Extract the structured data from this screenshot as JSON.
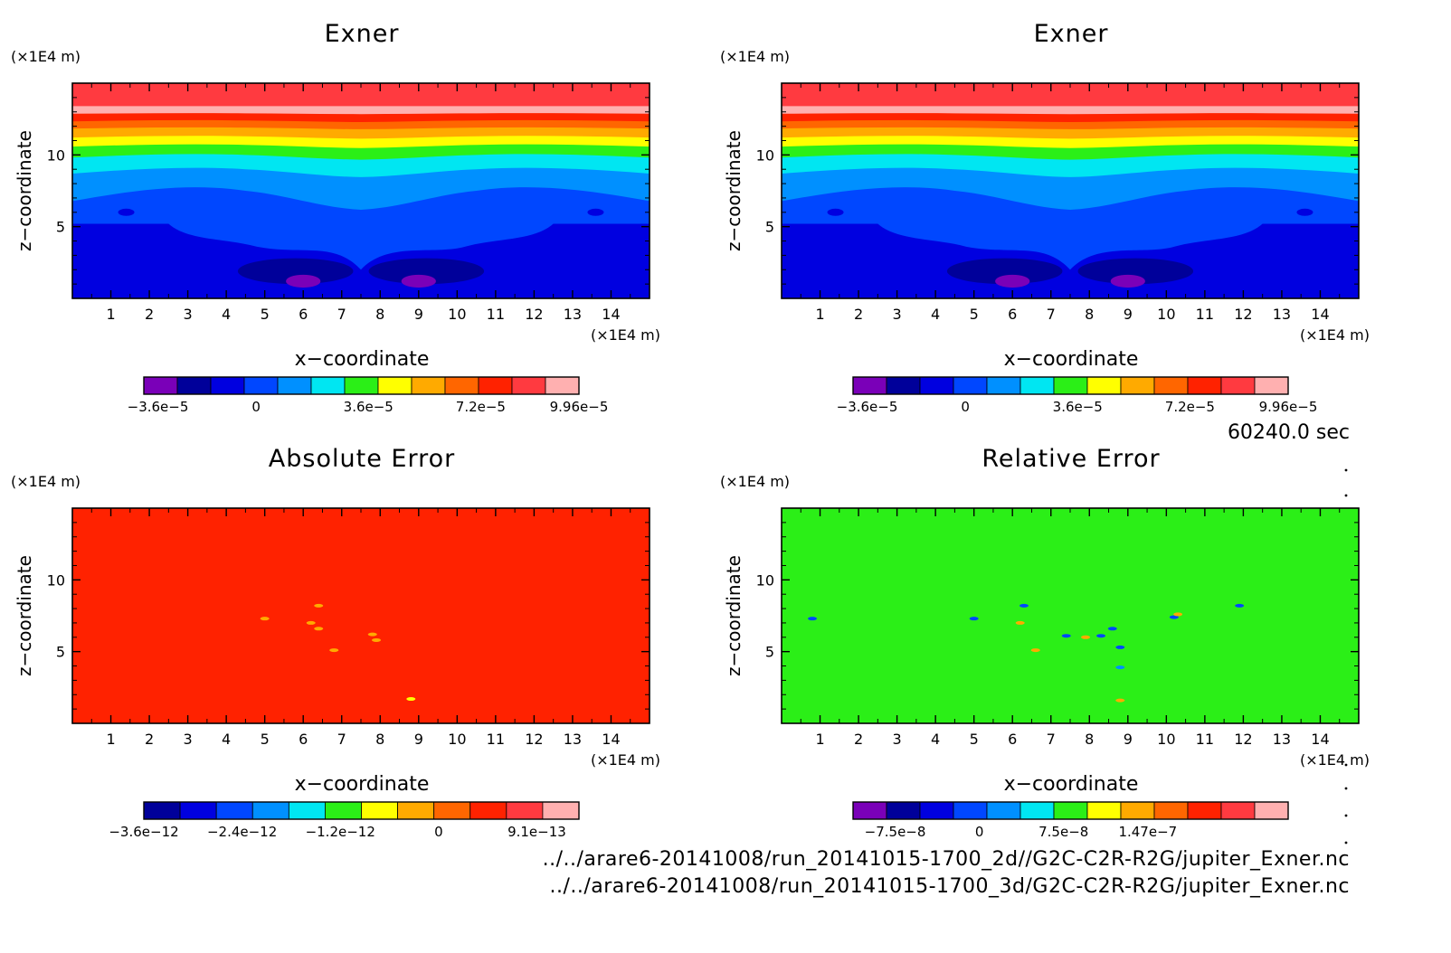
{
  "chart_data": [
    {
      "type": "heatmap",
      "title": "Exner",
      "xlabel": "x-coordinate",
      "ylabel": "z-coordinate",
      "x_unit": "(x1E4 m)",
      "z_unit": "(x1E4 m)",
      "xlim": [
        0,
        15
      ],
      "zlim": [
        0,
        15
      ],
      "x_ticks": [
        "1",
        "2",
        "3",
        "4",
        "5",
        "6",
        "7",
        "8",
        "9",
        "10",
        "11",
        "12",
        "13",
        "14"
      ],
      "z_ticks": [
        "5",
        "10"
      ],
      "colorbar": {
        "colors": [
          "#7a00b8",
          "#00009a",
          "#0000e0",
          "#0047ff",
          "#0090ff",
          "#00e6f2",
          "#2bef17",
          "#ffff00",
          "#ffaa00",
          "#ff6600",
          "#ff2200",
          "#ff3a40",
          "#ffb0b0"
        ],
        "labels": [
          "-3.6e-5",
          "0",
          "3.6e-5",
          "7.2e-5",
          "9.96e-5"
        ],
        "label_index": [
          0.5,
          4,
          8,
          12,
          15.5
        ]
      }
    },
    {
      "type": "heatmap",
      "title": "Exner",
      "xlabel": "x-coordinate",
      "ylabel": "z-coordinate",
      "x_unit": "(x1E4 m)",
      "z_unit": "(x1E4 m)",
      "xlim": [
        0,
        15
      ],
      "zlim": [
        0,
        15
      ],
      "x_ticks": [
        "1",
        "2",
        "3",
        "4",
        "5",
        "6",
        "7",
        "8",
        "9",
        "10",
        "11",
        "12",
        "13",
        "14"
      ],
      "z_ticks": [
        "5",
        "10"
      ],
      "colorbar": {
        "colors": [
          "#7a00b8",
          "#00009a",
          "#0000e0",
          "#0047ff",
          "#0090ff",
          "#00e6f2",
          "#2bef17",
          "#ffff00",
          "#ffaa00",
          "#ff6600",
          "#ff2200",
          "#ff3a40",
          "#ffb0b0"
        ],
        "labels": [
          "-3.6e-5",
          "0",
          "3.6e-5",
          "7.2e-5",
          "9.96e-5"
        ],
        "label_index": [
          0.5,
          4,
          8,
          12,
          15.5
        ]
      }
    },
    {
      "type": "heatmap",
      "title": "Absolute Error",
      "xlabel": "x-coordinate",
      "ylabel": "z-coordinate",
      "x_unit": "(x1E4 m)",
      "z_unit": "(x1E4 m)",
      "xlim": [
        0,
        15
      ],
      "zlim": [
        0,
        15
      ],
      "x_ticks": [
        "1",
        "2",
        "3",
        "4",
        "5",
        "6",
        "7",
        "8",
        "9",
        "10",
        "11",
        "12",
        "13",
        "14"
      ],
      "z_ticks": [
        "5",
        "10"
      ],
      "background_color": "#ff2200",
      "colorbar": {
        "colors": [
          "#00009a",
          "#0000e0",
          "#0047ff",
          "#0090ff",
          "#00e6f2",
          "#2bef17",
          "#ffff00",
          "#ffaa00",
          "#ff6600",
          "#ff2200",
          "#ff3a40",
          "#ffb0b0"
        ],
        "labels": [
          "-3.6e-12",
          "-2.4e-12",
          "-1.2e-12",
          "0",
          "9.1e-13"
        ],
        "label_index": [
          0,
          3.5,
          7,
          10.5,
          14
        ]
      }
    },
    {
      "type": "heatmap",
      "title": "Relative Error",
      "xlabel": "x-coordinate",
      "ylabel": "z-coordinate",
      "x_unit": "(x1E4 m)",
      "z_unit": "(x1E4 m)",
      "xlim": [
        0,
        15
      ],
      "zlim": [
        0,
        15
      ],
      "x_ticks": [
        "1",
        "2",
        "3",
        "4",
        "5",
        "6",
        "7",
        "8",
        "9",
        "10",
        "11",
        "12",
        "13",
        "14"
      ],
      "z_ticks": [
        "5",
        "10"
      ],
      "background_color": "#2bef17",
      "colorbar": {
        "colors": [
          "#7a00b8",
          "#00009a",
          "#0000e0",
          "#0047ff",
          "#0090ff",
          "#00e6f2",
          "#2bef17",
          "#ffff00",
          "#ffaa00",
          "#ff6600",
          "#ff2200",
          "#ff3a40",
          "#ffb0b0"
        ],
        "labels": [
          "-7.5e-8",
          "0",
          "7.5e-8",
          "1.47e-7"
        ],
        "label_index": [
          1.5,
          4.5,
          7.5,
          10.5
        ]
      }
    }
  ],
  "time_label": "60240.0 sec",
  "file_paths": [
    "../../arare6-20141008/run_20141015-1700_2d//G2C-C2R-R2G/jupiter_Exner.nc",
    "../../arare6-20141008/run_20141015-1700_3d/G2C-C2R-R2G/jupiter_Exner.nc"
  ]
}
